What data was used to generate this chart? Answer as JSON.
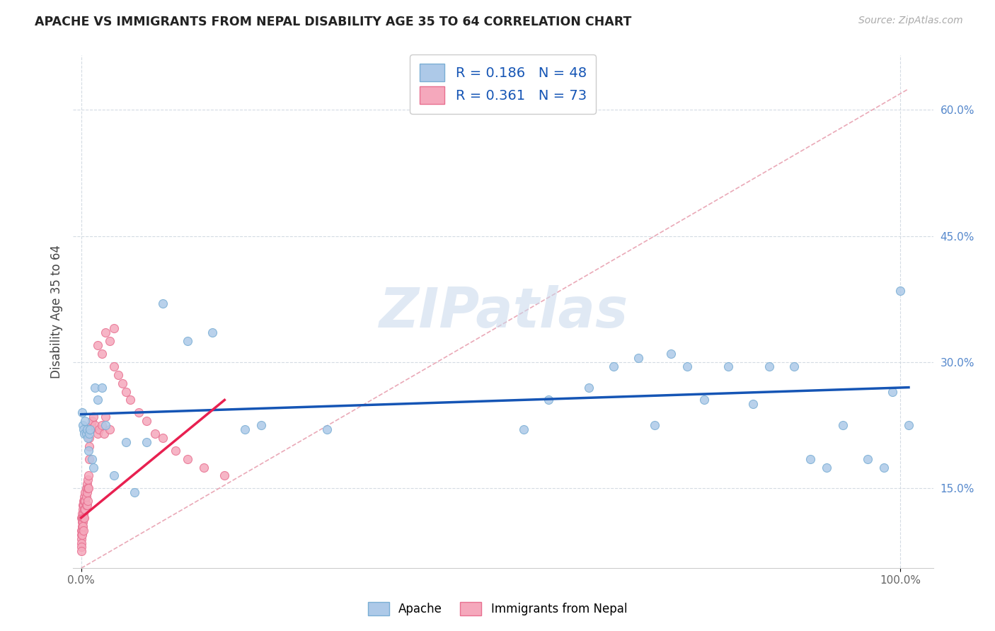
{
  "title": "APACHE VS IMMIGRANTS FROM NEPAL DISABILITY AGE 35 TO 64 CORRELATION CHART",
  "source": "Source: ZipAtlas.com",
  "ylabel": "Disability Age 35 to 64",
  "y_ticks_right": [
    0.15,
    0.3,
    0.45,
    0.6
  ],
  "y_tick_labels_right": [
    "15.0%",
    "30.0%",
    "45.0%",
    "60.0%"
  ],
  "xlim": [
    -0.01,
    1.04
  ],
  "ylim": [
    0.055,
    0.665
  ],
  "apache_color": "#adc9e8",
  "apache_edge_color": "#7aaed4",
  "nepal_color": "#f5a8bc",
  "nepal_edge_color": "#e87090",
  "trend_apache_color": "#1555b5",
  "trend_nepal_color": "#e82050",
  "ref_line_color": "#e8a0b0",
  "legend_label_apache": "Apache",
  "legend_label_nepal": "Immigrants from Nepal",
  "watermark": "ZIPatlas",
  "watermark_color": "#c8d8ec",
  "grid_color": "#d0d8e0",
  "background_color": "#ffffff",
  "marker_size": 75,
  "apache_x": [
    0.001,
    0.002,
    0.003,
    0.004,
    0.005,
    0.006,
    0.007,
    0.008,
    0.009,
    0.01,
    0.011,
    0.013,
    0.015,
    0.017,
    0.02,
    0.025,
    0.03,
    0.04,
    0.055,
    0.065,
    0.08,
    0.1,
    0.13,
    0.16,
    0.2,
    0.22,
    0.54,
    0.57,
    0.62,
    0.65,
    0.68,
    0.7,
    0.72,
    0.74,
    0.76,
    0.79,
    0.82,
    0.84,
    0.87,
    0.89,
    0.91,
    0.93,
    0.96,
    0.98,
    0.99,
    1.0,
    1.01,
    0.3
  ],
  "apache_y": [
    0.24,
    0.225,
    0.22,
    0.215,
    0.23,
    0.215,
    0.22,
    0.21,
    0.195,
    0.215,
    0.22,
    0.185,
    0.175,
    0.27,
    0.255,
    0.27,
    0.225,
    0.165,
    0.205,
    0.145,
    0.205,
    0.37,
    0.325,
    0.335,
    0.22,
    0.225,
    0.22,
    0.255,
    0.27,
    0.295,
    0.305,
    0.225,
    0.31,
    0.295,
    0.255,
    0.295,
    0.25,
    0.295,
    0.295,
    0.185,
    0.175,
    0.225,
    0.185,
    0.175,
    0.265,
    0.385,
    0.225,
    0.22
  ],
  "nepal_x": [
    0.0,
    0.0,
    0.0,
    0.0,
    0.0,
    0.0,
    0.0,
    0.001,
    0.001,
    0.001,
    0.001,
    0.001,
    0.001,
    0.002,
    0.002,
    0.002,
    0.002,
    0.002,
    0.003,
    0.003,
    0.003,
    0.003,
    0.003,
    0.004,
    0.004,
    0.004,
    0.004,
    0.005,
    0.005,
    0.005,
    0.006,
    0.006,
    0.006,
    0.007,
    0.007,
    0.007,
    0.008,
    0.008,
    0.008,
    0.009,
    0.009,
    0.01,
    0.01,
    0.01,
    0.011,
    0.012,
    0.013,
    0.015,
    0.017,
    0.02,
    0.022,
    0.025,
    0.028,
    0.03,
    0.035,
    0.04,
    0.045,
    0.05,
    0.055,
    0.06,
    0.07,
    0.08,
    0.09,
    0.1,
    0.115,
    0.13,
    0.15,
    0.175,
    0.02,
    0.025,
    0.03,
    0.035,
    0.04
  ],
  "nepal_y": [
    0.115,
    0.1,
    0.095,
    0.09,
    0.085,
    0.08,
    0.075,
    0.12,
    0.115,
    0.11,
    0.105,
    0.1,
    0.095,
    0.13,
    0.125,
    0.115,
    0.11,
    0.105,
    0.135,
    0.13,
    0.12,
    0.115,
    0.1,
    0.14,
    0.135,
    0.125,
    0.115,
    0.145,
    0.135,
    0.125,
    0.15,
    0.14,
    0.13,
    0.155,
    0.145,
    0.13,
    0.16,
    0.15,
    0.135,
    0.165,
    0.15,
    0.21,
    0.2,
    0.185,
    0.22,
    0.225,
    0.23,
    0.235,
    0.225,
    0.215,
    0.22,
    0.225,
    0.215,
    0.235,
    0.22,
    0.295,
    0.285,
    0.275,
    0.265,
    0.255,
    0.24,
    0.23,
    0.215,
    0.21,
    0.195,
    0.185,
    0.175,
    0.165,
    0.32,
    0.31,
    0.335,
    0.325,
    0.34
  ],
  "apache_trend_x": [
    0.0,
    1.01
  ],
  "apache_trend_y": [
    0.238,
    0.27
  ],
  "nepal_trend_x": [
    0.0,
    0.175
  ],
  "nepal_trend_y": [
    0.115,
    0.255
  ],
  "ref_line_x": [
    0.0,
    1.01
  ],
  "ref_line_y": [
    0.055,
    0.625
  ]
}
